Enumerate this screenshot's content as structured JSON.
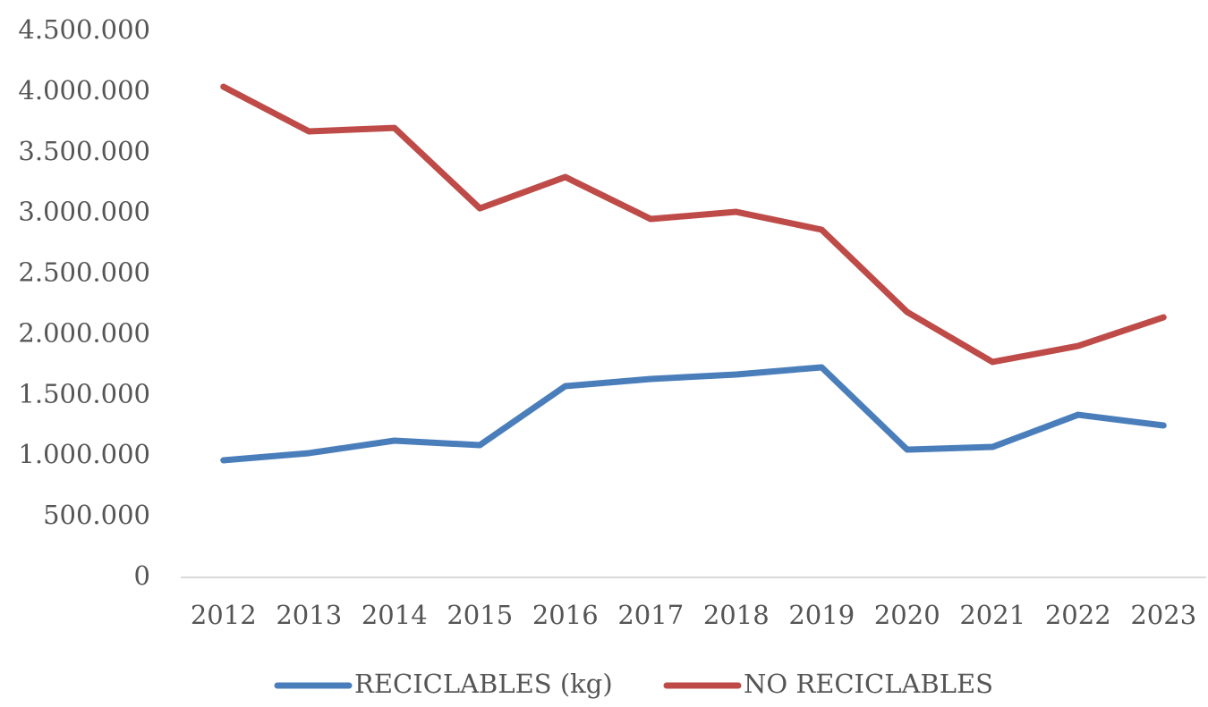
{
  "chart_data": {
    "type": "line",
    "categories": [
      "2012",
      "2013",
      "2014",
      "2015",
      "2016",
      "2017",
      "2018",
      "2019",
      "2020",
      "2021",
      "2022",
      "2023"
    ],
    "series": [
      {
        "name": "RECICLABLES (kg)",
        "color": "#4a7ebb",
        "values": [
          965000,
          1024000,
          1127000,
          1090000,
          1576000,
          1635000,
          1672000,
          1731000,
          1053000,
          1075000,
          1340000,
          1252000
        ]
      },
      {
        "name": "NO RECICLABLES",
        "color": "#be4b48",
        "values": [
          4043000,
          3675000,
          3704000,
          3041000,
          3299000,
          2953000,
          3012000,
          2865000,
          2187000,
          1775000,
          1907000,
          2143000
        ]
      }
    ],
    "ylim": [
      0,
      4500000
    ],
    "yticks": [
      0,
      {
        "value": 500000,
        "label": "500.000"
      },
      {
        "value": 1000000,
        "label": "1.000.000"
      },
      {
        "value": 1500000,
        "label": "1.500.000"
      },
      {
        "value": 2000000,
        "label": "2.000.000"
      },
      {
        "value": 2500000,
        "label": "2.500.000"
      },
      {
        "value": 3000000,
        "label": "3.000.000"
      },
      {
        "value": 3500000,
        "label": "3.500.000"
      },
      {
        "value": 4000000,
        "label": "4.000.000"
      },
      {
        "value": 4500000,
        "label": "4.500.000"
      }
    ],
    "grid": false,
    "legend": "bottom"
  }
}
